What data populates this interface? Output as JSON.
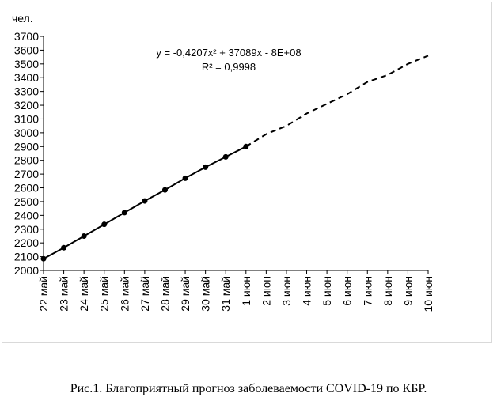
{
  "chart_data": {
    "type": "line",
    "ylabel": "чел.",
    "ylim": [
      2000,
      3700
    ],
    "ystep": 100,
    "categories": [
      "22 май",
      "23 май",
      "24 май",
      "25 май",
      "26 май",
      "27 май",
      "28 май",
      "29 май",
      "30 май",
      "31 май",
      "1 июн",
      "2 июн",
      "3 июн",
      "4 июн",
      "5 июн",
      "6 июн",
      "7 июн",
      "8 июн",
      "9 июн",
      "10 июн"
    ],
    "series": [
      {
        "style": "solid-markers",
        "values": [
          2085,
          2165,
          2250,
          2335,
          2420,
          2505,
          2585,
          2670,
          2750,
          2825,
          2900,
          null,
          null,
          null,
          null,
          null,
          null,
          null,
          null,
          null
        ]
      },
      {
        "style": "dashed",
        "values": [
          null,
          null,
          null,
          null,
          null,
          null,
          null,
          null,
          null,
          null,
          2900,
          2990,
          3050,
          3140,
          3210,
          3280,
          3370,
          3420,
          3500,
          3560
        ]
      }
    ],
    "trendline_equation": "y = -0,4207x² + 37089x - 8E+08",
    "r_squared": "R² = 0,9998",
    "grid": false,
    "legend": "none"
  },
  "caption": "Рис.1. Благоприятный прогноз заболеваемости COVID-19 по КБР."
}
